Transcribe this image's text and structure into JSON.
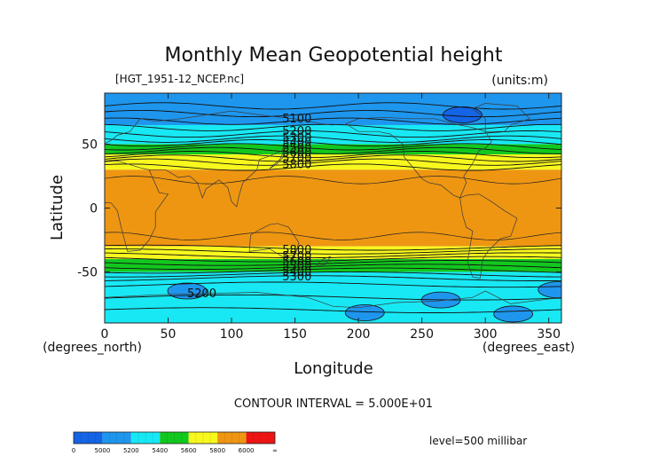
{
  "chart_data": {
    "type": "heatmap",
    "title": "Monthly Mean Geopotential height",
    "file_label": "[HGT_1951-12_NCEP.nc]",
    "units_label": "(units:m)",
    "xlabel": "Longitude",
    "ylabel": "Latitude",
    "x_unit_label": "(degrees_east)",
    "y_unit_label": "(degrees_north)",
    "xlim": [
      0,
      360
    ],
    "ylim": [
      -90,
      90
    ],
    "x_ticks": [
      0,
      50,
      100,
      150,
      200,
      250,
      300,
      350
    ],
    "y_ticks": [
      50,
      0,
      -50
    ],
    "contour_interval_label": "CONTOUR INTERVAL = 5.000E+01",
    "level_label": "level=500 millibar",
    "contour_labels": [
      {
        "value": "5100",
        "x": 140,
        "y": 70
      },
      {
        "value": "5200",
        "x": 140,
        "y": 60
      },
      {
        "value": "5300",
        "x": 140,
        "y": 55
      },
      {
        "value": "5400",
        "x": 140,
        "y": 51
      },
      {
        "value": "5500",
        "x": 140,
        "y": 47
      },
      {
        "value": "5600",
        "x": 140,
        "y": 43
      },
      {
        "value": "5700",
        "x": 140,
        "y": 39
      },
      {
        "value": "5800",
        "x": 140,
        "y": 34
      },
      {
        "value": "5800",
        "x": 140,
        "y": -33
      },
      {
        "value": "5700",
        "x": 140,
        "y": -38
      },
      {
        "value": "5600",
        "x": 140,
        "y": -42
      },
      {
        "value": "5500",
        "x": 140,
        "y": -46
      },
      {
        "value": "5400",
        "x": 140,
        "y": -50
      },
      {
        "value": "5300",
        "x": 140,
        "y": -54
      },
      {
        "value": "5200",
        "x": 65,
        "y": -67
      }
    ],
    "colorbar": {
      "bands": [
        {
          "from": 0,
          "to": 5000,
          "color": "#1464e6"
        },
        {
          "from": 5000,
          "to": 5200,
          "color": "#1e96ee"
        },
        {
          "from": 5200,
          "to": 5400,
          "color": "#18e8f4"
        },
        {
          "from": 5400,
          "to": 5600,
          "color": "#12c81e"
        },
        {
          "from": 5600,
          "to": 5800,
          "color": "#f8f81e"
        },
        {
          "from": 5800,
          "to": 6000,
          "color": "#ee9612"
        },
        {
          "from": 6000,
          "to": "∞",
          "color": "#ee1414"
        }
      ],
      "tick_labels": [
        "0",
        "5000",
        "5200",
        "5400",
        "5600",
        "5800",
        "6000",
        "∞"
      ]
    },
    "zonal_bands": [
      {
        "lat_from": 90,
        "lat_to": 65,
        "level": "5000-5200",
        "color": "#1e96ee"
      },
      {
        "lat_from": 65,
        "lat_to": 50,
        "level": "5200-5400",
        "color": "#18e8f4"
      },
      {
        "lat_from": 50,
        "lat_to": 42,
        "level": "5400-5600",
        "color": "#12c81e"
      },
      {
        "lat_from": 42,
        "lat_to": 30,
        "level": "5600-5800",
        "color": "#f8f81e"
      },
      {
        "lat_from": 30,
        "lat_to": -30,
        "level": "5800-6000",
        "color": "#ee9612"
      },
      {
        "lat_from": -30,
        "lat_to": -40,
        "level": "5600-5800",
        "color": "#f8f81e"
      },
      {
        "lat_from": -40,
        "lat_to": -50,
        "level": "5400-5600",
        "color": "#12c81e"
      },
      {
        "lat_from": -50,
        "lat_to": -90,
        "level": "5200-5400",
        "color": "#18e8f4"
      }
    ],
    "lows": [
      {
        "lon": 282,
        "lat": 73,
        "level": "<5000",
        "color": "#1464e6"
      },
      {
        "lon": 65,
        "lat": -65,
        "level": "5000-5200",
        "color": "#1e96ee"
      },
      {
        "lon": 205,
        "lat": -82,
        "level": "5000-5200",
        "color": "#1e96ee"
      },
      {
        "lon": 265,
        "lat": -72,
        "level": "5000-5200",
        "color": "#1e96ee"
      },
      {
        "lon": 322,
        "lat": -83,
        "level": "5000-5200",
        "color": "#1e96ee"
      },
      {
        "lon": 357,
        "lat": -64,
        "level": "5000-5200",
        "color": "#1e96ee"
      }
    ]
  }
}
